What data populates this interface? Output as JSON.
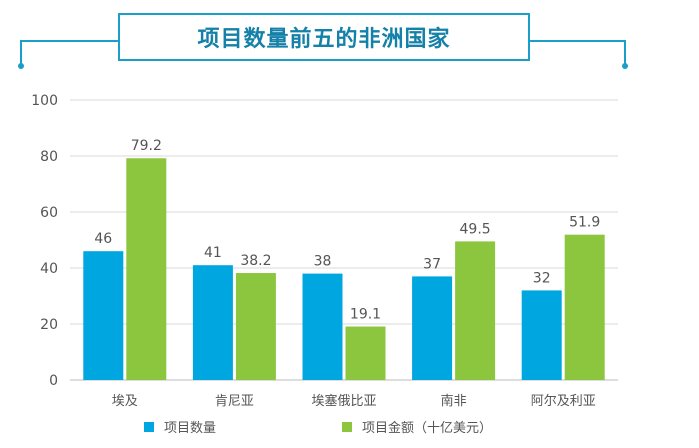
{
  "chart_data": {
    "type": "bar",
    "title": "项目数量前五的非洲国家",
    "categories": [
      "埃及",
      "肯尼亚",
      "埃塞俄比亚",
      "南非",
      "阿尔及利亚"
    ],
    "series": [
      {
        "name": "项目数量",
        "color": "#00a6e0",
        "values": [
          46,
          41,
          38,
          37,
          32
        ],
        "labels": [
          "46",
          "41",
          "38",
          "37",
          "32"
        ]
      },
      {
        "name": "项目金额（十亿美元）",
        "color": "#8cc63f",
        "values": [
          79.2,
          38.2,
          19.1,
          49.5,
          51.9
        ],
        "labels": [
          "79.2",
          "38.2",
          "19.1",
          "49.5",
          "51.9"
        ]
      }
    ],
    "ylim": [
      0,
      100
    ],
    "yticks": [
      "0",
      "20",
      "40",
      "60",
      "80",
      "100"
    ],
    "grid": true,
    "legend_position": "bottom"
  },
  "colors": {
    "accent": "#1aa0c8",
    "title": "#1580a8"
  }
}
